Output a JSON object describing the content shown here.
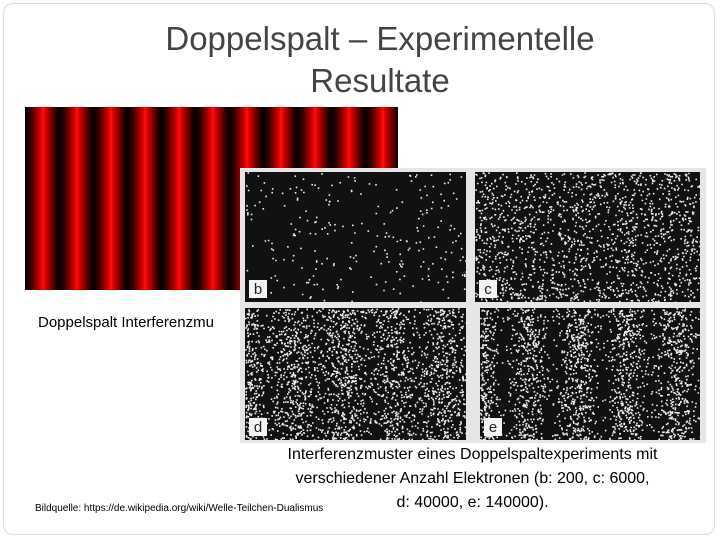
{
  "title": {
    "line1": "Doppelspalt – Experimentelle",
    "line2": "Resultate"
  },
  "left_caption": "Doppelspalt Interferenzmu",
  "panels": [
    {
      "label": "b"
    },
    {
      "label": "c"
    },
    {
      "label": "d"
    },
    {
      "label": "e"
    }
  ],
  "caption": {
    "line1": "Interferenzmuster eines Doppelspaltexperiments mit",
    "line2": "verschiedener Anzahl Elektronen (b: 200, c: 6000,",
    "line3": "d: 40000, e: 140000)."
  },
  "source": "Bildquelle: https://de.wikipedia.org/wiki/Welle-Teilchen-Dualismus"
}
